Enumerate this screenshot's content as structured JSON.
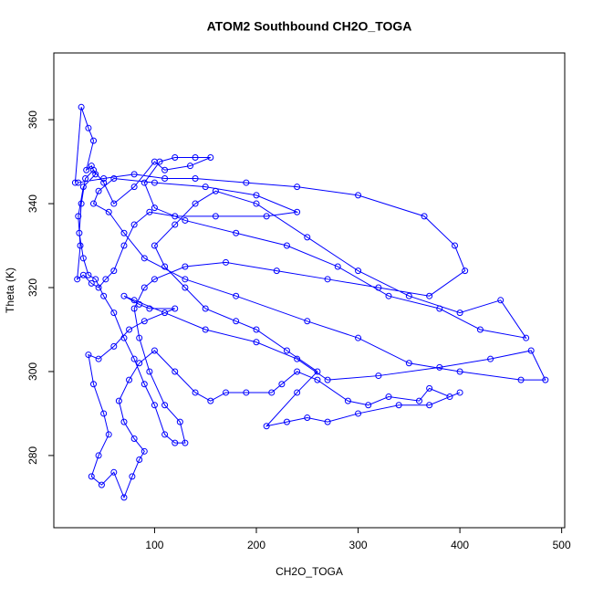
{
  "chart_data": {
    "type": "line-points",
    "title": "ATOM2 Southbound CH2O_TOGA",
    "x_label": "CH2O_TOGA",
    "y_label": "Theta (K)",
    "color": "#0000ff",
    "xlim": [
      1,
      503
    ],
    "ylim": [
      262.8,
      375.9
    ],
    "xticks": [
      100,
      200,
      300,
      400,
      500
    ],
    "yticks": [
      280,
      300,
      320,
      340,
      360
    ],
    "series": [
      {
        "name": "CH2O_TOGA",
        "color": "#0000ff",
        "x": [
          22,
          28,
          35,
          40,
          33,
          38,
          42,
          30,
          25,
          27,
          24,
          30,
          38,
          45,
          52,
          60,
          70,
          80,
          95,
          120,
          160,
          210,
          240,
          200,
          150,
          100,
          60,
          45,
          40,
          55,
          70,
          90,
          130,
          180,
          250,
          300,
          350,
          400,
          460,
          484,
          470,
          430,
          380,
          320,
          270,
          240,
          200,
          150,
          110,
          80,
          70,
          85,
          95,
          120,
          90,
          75,
          60,
          45,
          35,
          40,
          50,
          55,
          45,
          38,
          48,
          60,
          70,
          78,
          85,
          90,
          80,
          70,
          65,
          75,
          85,
          100,
          120,
          140,
          155,
          170,
          190,
          215,
          225,
          240,
          260,
          290,
          310,
          330,
          360,
          370,
          390,
          400,
          370,
          340,
          300,
          270,
          250,
          230,
          210,
          240,
          260,
          230,
          200,
          180,
          150,
          130,
          110,
          100,
          120,
          140,
          160,
          200,
          250,
          300,
          350,
          400,
          440,
          465,
          420,
          380,
          330,
          280,
          230,
          180,
          130,
          100,
          90,
          105,
          120,
          140,
          155,
          135,
          110,
          100,
          80,
          60,
          50,
          40,
          32,
          28,
          26,
          30,
          35,
          42,
          50,
          60,
          70,
          80,
          90,
          100,
          110,
          120,
          130,
          125,
          110,
          95,
          85,
          80,
          90,
          100,
          130,
          170,
          220,
          270,
          320,
          370,
          405,
          395,
          365,
          300,
          240,
          190,
          140,
          110,
          80,
          50,
          25
        ],
        "values": [
          345,
          363,
          358,
          355,
          348,
          349,
          347,
          344,
          337,
          330,
          322,
          323,
          321,
          320,
          322,
          324,
          330,
          335,
          338,
          337,
          337,
          337,
          338,
          342,
          344,
          345,
          346,
          343,
          340,
          338,
          333,
          327,
          322,
          318,
          312,
          308,
          302,
          300,
          298,
          298,
          305,
          303,
          301,
          299,
          298,
          303,
          307,
          310,
          314,
          317,
          318,
          316,
          315,
          315,
          312,
          310,
          306,
          303,
          304,
          297,
          290,
          285,
          280,
          275,
          273,
          276,
          270,
          275,
          279,
          281,
          284,
          288,
          293,
          298,
          302,
          305,
          300,
          295,
          293,
          295,
          295,
          295,
          297,
          300,
          298,
          293,
          292,
          294,
          293,
          296,
          294,
          295,
          292,
          292,
          290,
          288,
          289,
          288,
          287,
          295,
          300,
          305,
          310,
          312,
          315,
          320,
          325,
          330,
          335,
          340,
          343,
          340,
          332,
          324,
          318,
          314,
          317,
          308,
          310,
          315,
          318,
          325,
          330,
          333,
          336,
          339,
          345,
          350,
          351,
          351,
          351,
          349,
          348,
          350,
          344,
          340,
          345,
          348,
          346,
          340,
          333,
          327,
          323,
          322,
          318,
          314,
          308,
          303,
          297,
          292,
          285,
          283,
          283,
          288,
          292,
          300,
          308,
          315,
          320,
          322,
          325,
          326,
          324,
          322,
          320,
          318,
          324,
          330,
          337,
          342,
          344,
          345,
          346,
          346,
          347,
          346,
          345
        ]
      }
    ]
  }
}
